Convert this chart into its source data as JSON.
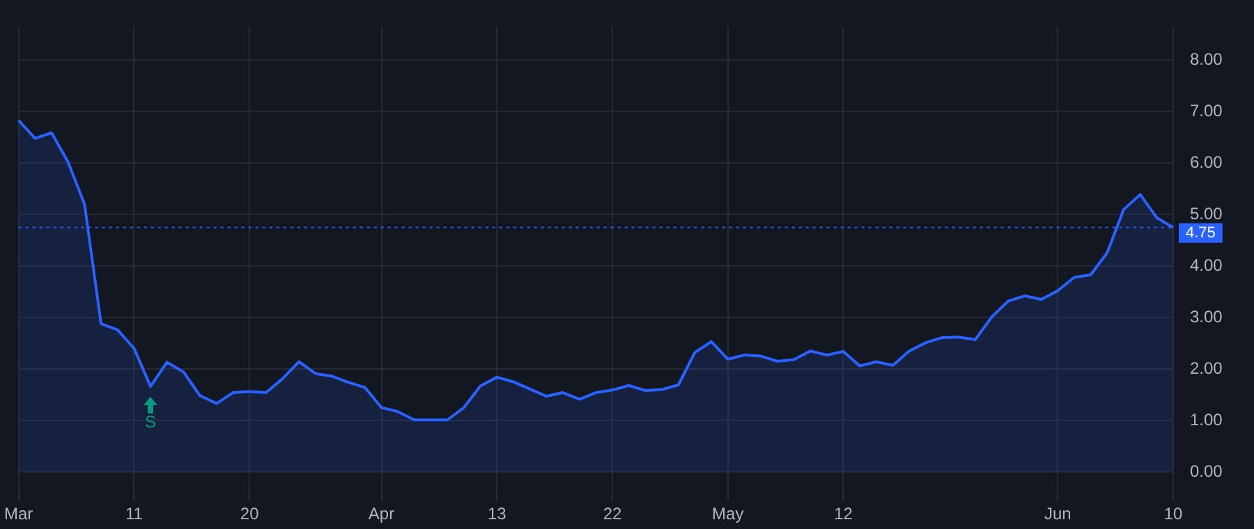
{
  "chart_data": {
    "type": "area",
    "categories": [
      "Mar",
      null,
      null,
      null,
      null,
      null,
      null,
      "11",
      null,
      null,
      null,
      null,
      null,
      null,
      "20",
      null,
      null,
      null,
      null,
      null,
      null,
      null,
      "Apr",
      null,
      null,
      null,
      null,
      null,
      null,
      "13",
      null,
      null,
      null,
      null,
      null,
      null,
      "22",
      null,
      null,
      null,
      null,
      null,
      null,
      "May",
      null,
      null,
      null,
      null,
      null,
      null,
      "12",
      null,
      null,
      null,
      null,
      null,
      null,
      null,
      null,
      null,
      null,
      null,
      null,
      "Jun",
      null,
      null,
      null,
      null,
      null,
      null,
      "10"
    ],
    "series": [
      {
        "color": "#2962ff",
        "values": [
          6.83,
          6.48,
          6.59,
          6.02,
          5.2,
          2.88,
          2.76,
          2.4,
          1.66,
          2.13,
          1.94,
          1.48,
          1.33,
          1.54,
          1.56,
          1.54,
          1.81,
          2.14,
          1.91,
          1.86,
          1.74,
          1.64,
          1.25,
          1.17,
          1.01,
          1.01,
          1.01,
          1.25,
          1.67,
          1.84,
          1.75,
          1.61,
          1.47,
          1.54,
          1.41,
          1.54,
          1.59,
          1.68,
          1.58,
          1.6,
          1.69,
          2.32,
          2.53,
          2.19,
          2.27,
          2.25,
          2.15,
          2.18,
          2.35,
          2.27,
          2.34,
          2.06,
          2.14,
          2.07,
          2.35,
          2.51,
          2.61,
          2.62,
          2.57,
          3.01,
          3.32,
          3.42,
          3.35,
          3.52,
          3.78,
          3.83,
          4.26,
          5.1,
          5.39,
          4.94,
          4.75
        ]
      }
    ],
    "ylim": [
      -0.45,
      8.65
    ],
    "yticks": [
      {
        "value": 0,
        "label": "0.00"
      },
      {
        "value": 1,
        "label": "1.00"
      },
      {
        "value": 2,
        "label": "2.00"
      },
      {
        "value": 3,
        "label": "3.00"
      },
      {
        "value": 4,
        "label": "4.00"
      },
      {
        "value": 5,
        "label": "5.00"
      },
      {
        "value": 6,
        "label": "6.00"
      },
      {
        "value": 7,
        "label": "7.00"
      },
      {
        "value": 8,
        "label": "8.00"
      }
    ],
    "ref_lines": [
      {
        "axis": "y",
        "value": 4.75,
        "label": "4.75",
        "color": "#2962ff",
        "line_style": "dotted"
      }
    ],
    "annotations": [
      {
        "text": "S",
        "y": 1.66
      }
    ],
    "grid": true,
    "marker": "none",
    "line_style": "solid"
  }
}
